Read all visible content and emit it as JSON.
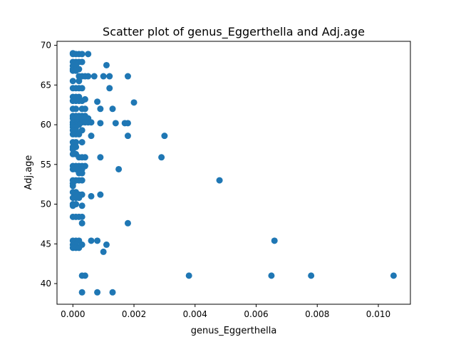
{
  "chart_data": {
    "type": "scatter",
    "title": "Scatter plot of genus_Eggerthella and Adj.age",
    "xlabel": "genus_Eggerthella",
    "ylabel": "Adj.age",
    "xlim": [
      -0.00052,
      0.01105
    ],
    "ylim": [
      37.4,
      70.5
    ],
    "xticks": [
      0.0,
      0.002,
      0.004,
      0.006,
      0.008,
      0.01
    ],
    "xtick_labels": [
      "0.000",
      "0.002",
      "0.004",
      "0.006",
      "0.008",
      "0.010"
    ],
    "yticks": [
      40,
      45,
      50,
      55,
      60,
      65,
      70
    ],
    "ytick_labels": [
      "40",
      "45",
      "50",
      "55",
      "60",
      "65",
      "70"
    ],
    "grid": false,
    "marker_color": "#1f77b4",
    "points": [
      {
        "x": 0.0,
        "y": 69.0
      },
      {
        "x": 0.0,
        "y": 68.9
      },
      {
        "x": 0.0001,
        "y": 68.9
      },
      {
        "x": 0.0002,
        "y": 68.9
      },
      {
        "x": 0.0003,
        "y": 68.9
      },
      {
        "x": 0.0005,
        "y": 68.9
      },
      {
        "x": 0.0,
        "y": 67.9
      },
      {
        "x": 0.0001,
        "y": 67.9
      },
      {
        "x": 0.0002,
        "y": 67.9
      },
      {
        "x": 0.0003,
        "y": 67.9
      },
      {
        "x": 0.0,
        "y": 67.4
      },
      {
        "x": 0.0001,
        "y": 67.4
      },
      {
        "x": 0.0,
        "y": 67.0
      },
      {
        "x": 0.0001,
        "y": 67.0
      },
      {
        "x": 0.0002,
        "y": 67.0
      },
      {
        "x": 0.0,
        "y": 66.8
      },
      {
        "x": 0.0001,
        "y": 66.8
      },
      {
        "x": 0.0011,
        "y": 67.5
      },
      {
        "x": 0.0002,
        "y": 66.1
      },
      {
        "x": 0.0003,
        "y": 66.1
      },
      {
        "x": 0.0004,
        "y": 66.1
      },
      {
        "x": 0.0005,
        "y": 66.1
      },
      {
        "x": 0.0007,
        "y": 66.1
      },
      {
        "x": 0.001,
        "y": 66.1
      },
      {
        "x": 0.0012,
        "y": 66.1
      },
      {
        "x": 0.0018,
        "y": 66.1
      },
      {
        "x": 0.0,
        "y": 65.5
      },
      {
        "x": 0.0002,
        "y": 65.5
      },
      {
        "x": 0.0,
        "y": 64.6
      },
      {
        "x": 0.0001,
        "y": 64.6
      },
      {
        "x": 0.0002,
        "y": 64.6
      },
      {
        "x": 0.0003,
        "y": 64.6
      },
      {
        "x": 0.0012,
        "y": 64.6
      },
      {
        "x": 0.0,
        "y": 63.5
      },
      {
        "x": 0.0001,
        "y": 63.5
      },
      {
        "x": 0.0002,
        "y": 63.5
      },
      {
        "x": 0.0,
        "y": 63.0
      },
      {
        "x": 0.0001,
        "y": 63.0
      },
      {
        "x": 0.0002,
        "y": 63.0
      },
      {
        "x": 0.0003,
        "y": 63.0
      },
      {
        "x": 0.0004,
        "y": 63.2
      },
      {
        "x": 0.0008,
        "y": 62.9
      },
      {
        "x": 0.002,
        "y": 62.8
      },
      {
        "x": 0.0,
        "y": 62.0
      },
      {
        "x": 0.0001,
        "y": 62.0
      },
      {
        "x": 0.0003,
        "y": 62.0
      },
      {
        "x": 0.0004,
        "y": 62.0
      },
      {
        "x": 0.0009,
        "y": 62.0
      },
      {
        "x": 0.0013,
        "y": 62.0
      },
      {
        "x": 0.0,
        "y": 61.1
      },
      {
        "x": 0.0001,
        "y": 61.1
      },
      {
        "x": 0.0002,
        "y": 61.1
      },
      {
        "x": 0.0003,
        "y": 61.1
      },
      {
        "x": 0.0004,
        "y": 61.1
      },
      {
        "x": 0.0,
        "y": 60.8
      },
      {
        "x": 0.0001,
        "y": 60.8
      },
      {
        "x": 0.0002,
        "y": 60.8
      },
      {
        "x": 0.0003,
        "y": 60.8
      },
      {
        "x": 0.0004,
        "y": 60.8
      },
      {
        "x": 0.0005,
        "y": 60.8
      },
      {
        "x": 0.0,
        "y": 60.3
      },
      {
        "x": 0.0001,
        "y": 60.3
      },
      {
        "x": 0.0002,
        "y": 60.3
      },
      {
        "x": 0.0003,
        "y": 60.3
      },
      {
        "x": 0.0004,
        "y": 60.3
      },
      {
        "x": 0.0005,
        "y": 60.3
      },
      {
        "x": 0.0006,
        "y": 60.3
      },
      {
        "x": 0.0009,
        "y": 60.2
      },
      {
        "x": 0.0014,
        "y": 60.2
      },
      {
        "x": 0.0017,
        "y": 60.2
      },
      {
        "x": 0.0018,
        "y": 60.2
      },
      {
        "x": 0.0,
        "y": 60.0
      },
      {
        "x": 0.0001,
        "y": 60.0
      },
      {
        "x": 0.0002,
        "y": 60.0
      },
      {
        "x": 0.0,
        "y": 59.7
      },
      {
        "x": 0.0001,
        "y": 59.7
      },
      {
        "x": 0.0,
        "y": 59.3
      },
      {
        "x": 0.0001,
        "y": 59.3
      },
      {
        "x": 0.0003,
        "y": 59.3
      },
      {
        "x": 0.0,
        "y": 58.8
      },
      {
        "x": 0.0001,
        "y": 58.8
      },
      {
        "x": 0.0002,
        "y": 58.8
      },
      {
        "x": 0.0006,
        "y": 58.6
      },
      {
        "x": 0.0018,
        "y": 58.6
      },
      {
        "x": 0.003,
        "y": 58.6
      },
      {
        "x": 0.0,
        "y": 57.8
      },
      {
        "x": 0.0001,
        "y": 57.8
      },
      {
        "x": 0.0,
        "y": 57.2
      },
      {
        "x": 0.0001,
        "y": 57.2
      },
      {
        "x": 0.0,
        "y": 56.9
      },
      {
        "x": 0.0003,
        "y": 57.8
      },
      {
        "x": 0.0,
        "y": 56.3
      },
      {
        "x": 0.0001,
        "y": 56.3
      },
      {
        "x": 0.0002,
        "y": 55.9
      },
      {
        "x": 0.0003,
        "y": 55.9
      },
      {
        "x": 0.0004,
        "y": 55.9
      },
      {
        "x": 0.0009,
        "y": 55.9
      },
      {
        "x": 0.0029,
        "y": 55.9
      },
      {
        "x": 0.0,
        "y": 54.8
      },
      {
        "x": 0.0001,
        "y": 54.8
      },
      {
        "x": 0.0002,
        "y": 54.8
      },
      {
        "x": 0.0003,
        "y": 54.8
      },
      {
        "x": 0.0004,
        "y": 54.8
      },
      {
        "x": 0.0,
        "y": 54.4
      },
      {
        "x": 0.0001,
        "y": 54.4
      },
      {
        "x": 0.0002,
        "y": 54.4
      },
      {
        "x": 0.0003,
        "y": 54.4
      },
      {
        "x": 0.0015,
        "y": 54.4
      },
      {
        "x": 0.0002,
        "y": 53.9
      },
      {
        "x": 0.0003,
        "y": 53.9
      },
      {
        "x": 0.0,
        "y": 53.0
      },
      {
        "x": 0.0001,
        "y": 53.0
      },
      {
        "x": 0.0002,
        "y": 53.0
      },
      {
        "x": 0.0003,
        "y": 53.0
      },
      {
        "x": 0.0048,
        "y": 53.0
      },
      {
        "x": 0.0,
        "y": 52.6
      },
      {
        "x": 0.0,
        "y": 52.3
      },
      {
        "x": 0.0,
        "y": 51.5
      },
      {
        "x": 0.0001,
        "y": 51.5
      },
      {
        "x": 0.0001,
        "y": 51.2
      },
      {
        "x": 0.0002,
        "y": 51.2
      },
      {
        "x": 0.0003,
        "y": 51.2
      },
      {
        "x": 0.0009,
        "y": 51.2
      },
      {
        "x": 0.0,
        "y": 50.8
      },
      {
        "x": 0.0001,
        "y": 50.8
      },
      {
        "x": 0.0002,
        "y": 50.8
      },
      {
        "x": 0.0006,
        "y": 51.0
      },
      {
        "x": 0.0,
        "y": 50.0
      },
      {
        "x": 0.0001,
        "y": 50.0
      },
      {
        "x": 0.0,
        "y": 49.8
      },
      {
        "x": 0.0003,
        "y": 49.8
      },
      {
        "x": 0.0,
        "y": 48.4
      },
      {
        "x": 0.0001,
        "y": 48.4
      },
      {
        "x": 0.0002,
        "y": 48.4
      },
      {
        "x": 0.0003,
        "y": 48.4
      },
      {
        "x": 0.0003,
        "y": 47.6
      },
      {
        "x": 0.0018,
        "y": 47.6
      },
      {
        "x": 0.0,
        "y": 45.4
      },
      {
        "x": 0.0001,
        "y": 45.4
      },
      {
        "x": 0.0002,
        "y": 45.4
      },
      {
        "x": 0.0006,
        "y": 45.4
      },
      {
        "x": 0.0008,
        "y": 45.4
      },
      {
        "x": 0.0066,
        "y": 45.4
      },
      {
        "x": 0.0,
        "y": 44.9
      },
      {
        "x": 0.0001,
        "y": 44.9
      },
      {
        "x": 0.0003,
        "y": 44.9
      },
      {
        "x": 0.0011,
        "y": 44.9
      },
      {
        "x": 0.0,
        "y": 44.5
      },
      {
        "x": 0.0001,
        "y": 44.5
      },
      {
        "x": 0.0002,
        "y": 44.5
      },
      {
        "x": 0.001,
        "y": 44.0
      },
      {
        "x": 0.0003,
        "y": 41.0
      },
      {
        "x": 0.0004,
        "y": 41.0
      },
      {
        "x": 0.0038,
        "y": 41.0
      },
      {
        "x": 0.0065,
        "y": 41.0
      },
      {
        "x": 0.0078,
        "y": 41.0
      },
      {
        "x": 0.0105,
        "y": 41.0
      },
      {
        "x": 0.0003,
        "y": 38.9
      },
      {
        "x": 0.0008,
        "y": 38.9
      },
      {
        "x": 0.0013,
        "y": 38.9
      }
    ]
  }
}
